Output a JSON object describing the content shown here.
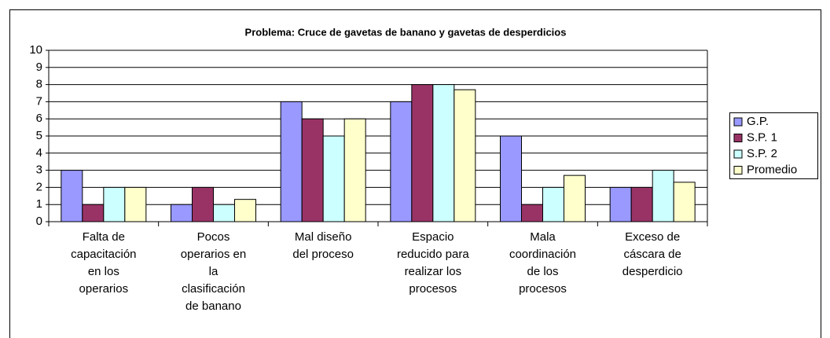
{
  "chart_data": {
    "type": "bar",
    "title": "Problema: Cruce de gavetas de banano y gavetas de desperdicios",
    "categories": [
      "Falta de\ncapacitación\nen los\noperarios",
      "Pocos\noperarios en\nla\nclasificación\nde banano",
      "Mal diseño\ndel proceso",
      "Espacio\nreducido para\nrealizar los\nprocesos",
      "Mala\ncoordinación\nde los\nprocesos",
      "Exceso de\ncáscara de\ndesperdicio"
    ],
    "series": [
      {
        "name": "G.P.",
        "color": "#9999ff",
        "values": [
          3,
          1,
          7,
          7,
          5,
          2
        ]
      },
      {
        "name": "S.P. 1",
        "color": "#993366",
        "values": [
          1,
          2,
          6,
          8,
          1,
          2
        ]
      },
      {
        "name": "S.P. 2",
        "color": "#ccffff",
        "values": [
          2,
          1,
          5,
          8,
          2,
          3
        ]
      },
      {
        "name": "Promedio",
        "color": "#ffffcc",
        "values": [
          2,
          1.3,
          6,
          7.7,
          2.7,
          2.3
        ]
      }
    ],
    "ylim": [
      0,
      10
    ],
    "yticks": [
      0,
      1,
      2,
      3,
      4,
      5,
      6,
      7,
      8,
      9,
      10
    ],
    "grid": true,
    "legend": "right"
  }
}
